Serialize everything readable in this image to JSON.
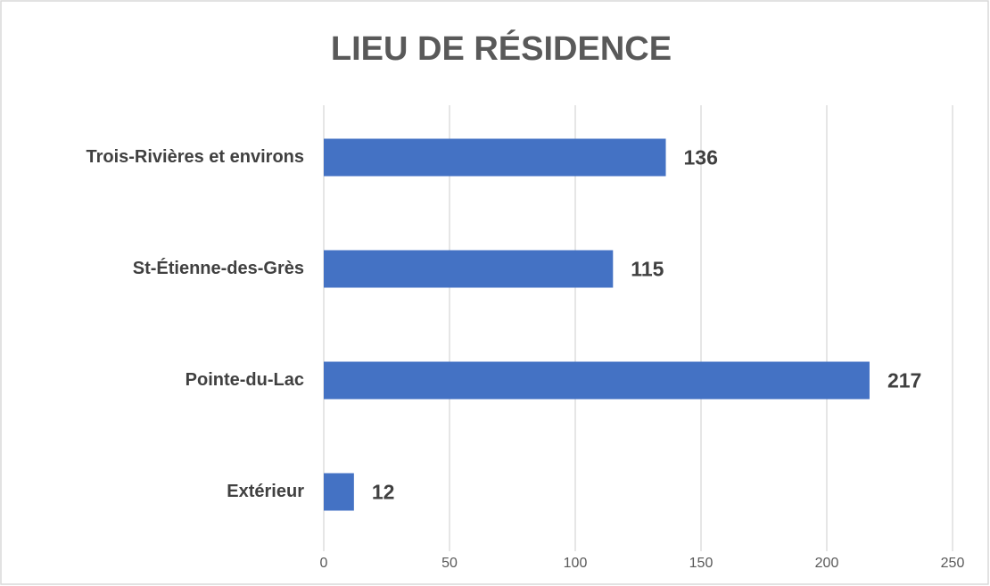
{
  "chart_data": {
    "type": "bar",
    "orientation": "horizontal",
    "title": "LIEU DE RÉSIDENCE",
    "categories": [
      "Trois-Rivières et environs",
      "St-Étienne-des-Grès",
      "Pointe-du-Lac",
      "Extérieur"
    ],
    "values": [
      136,
      115,
      217,
      12
    ],
    "color": "#4472c4",
    "xlim": [
      0,
      250
    ],
    "xticks": [
      0,
      50,
      100,
      150,
      200,
      250
    ],
    "grid": true
  }
}
